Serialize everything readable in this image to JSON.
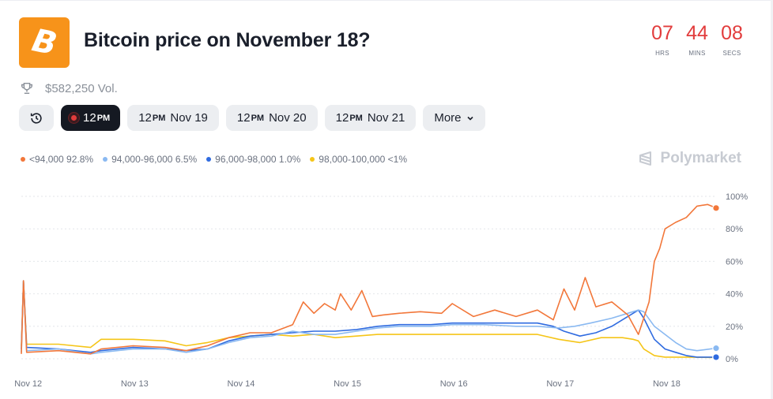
{
  "header": {
    "title": "Bitcoin price on November 18?",
    "logo_glyph": "B",
    "volume": "$582,250 Vol."
  },
  "countdown": [
    {
      "value": "07",
      "label": "HRS"
    },
    {
      "value": "44",
      "label": "MINS"
    },
    {
      "value": "08",
      "label": "SECS"
    }
  ],
  "tabs": {
    "active": {
      "hour": "12",
      "suffix": "PM"
    },
    "items": [
      {
        "hour": "12",
        "suffix": "PM",
        "day": "Nov 19"
      },
      {
        "hour": "12",
        "suffix": "PM",
        "day": "Nov 20"
      },
      {
        "hour": "12",
        "suffix": "PM",
        "day": "Nov 21"
      }
    ],
    "more_label": "More"
  },
  "legend": [
    {
      "label": "<94,000 92.8%",
      "color": "#f2773a"
    },
    {
      "label": "94,000-96,000 6.5%",
      "color": "#8ab9f1"
    },
    {
      "label": "96,000-98,000 1.0%",
      "color": "#2f6be0"
    },
    {
      "label": "98,000-100,000 <1%",
      "color": "#f5c518"
    }
  ],
  "brand": "Polymarket",
  "colors": {
    "accent_red": "#e23c3c",
    "logo_orange": "#f7931a"
  },
  "chart_data": {
    "type": "line",
    "x_ticks": [
      "Nov 12",
      "Nov 13",
      "Nov 14",
      "Nov 15",
      "Nov 16",
      "Nov 17",
      "Nov 18"
    ],
    "y_ticks": [
      "100%",
      "80%",
      "60%",
      "40%",
      "20%",
      "0%"
    ],
    "ylim": [
      0,
      100
    ],
    "xlim": [
      11.95,
      18.48
    ],
    "grid": true,
    "series": [
      {
        "name": "<94,000",
        "color": "#f2773a",
        "x": [
          11.95,
          11.97,
          12.0,
          12.3,
          12.6,
          12.7,
          13.0,
          13.3,
          13.5,
          13.7,
          13.9,
          14.1,
          14.3,
          14.5,
          14.6,
          14.7,
          14.8,
          14.9,
          14.95,
          15.05,
          15.15,
          15.25,
          15.35,
          15.5,
          15.7,
          15.9,
          16.0,
          16.2,
          16.4,
          16.6,
          16.8,
          16.95,
          17.05,
          17.15,
          17.25,
          17.35,
          17.5,
          17.65,
          17.75,
          17.85,
          17.9,
          17.95,
          18.0,
          18.1,
          18.2,
          18.3,
          18.4,
          18.48
        ],
        "y": [
          3,
          48,
          4,
          5,
          3,
          6,
          8,
          7,
          5,
          8,
          13,
          16,
          16,
          21,
          35,
          28,
          34,
          30,
          40,
          30,
          42,
          26,
          27,
          28,
          29,
          28,
          34,
          26,
          30,
          26,
          30,
          24,
          43,
          30,
          50,
          32,
          35,
          27,
          15,
          35,
          60,
          68,
          80,
          84,
          87,
          94,
          95,
          92.8
        ]
      },
      {
        "name": "94,000-96,000",
        "color": "#8ab9f1",
        "x": [
          11.95,
          11.97,
          12.0,
          12.3,
          12.6,
          12.7,
          13.0,
          13.3,
          13.5,
          13.7,
          13.9,
          14.1,
          14.3,
          14.5,
          14.7,
          14.9,
          15.1,
          15.3,
          15.5,
          15.8,
          16.0,
          16.3,
          16.6,
          16.8,
          17.0,
          17.15,
          17.3,
          17.5,
          17.65,
          17.75,
          17.8,
          17.9,
          18.0,
          18.1,
          18.2,
          18.3,
          18.48
        ],
        "y": [
          4,
          48,
          5,
          6,
          3,
          4,
          6,
          6,
          4,
          6,
          10,
          13,
          14,
          17,
          15,
          15,
          17,
          19,
          20,
          20,
          21,
          21,
          20,
          20,
          19,
          20,
          22,
          25,
          28,
          30,
          29,
          20,
          15,
          10,
          6,
          5,
          6.5
        ]
      },
      {
        "name": "96,000-98,000",
        "color": "#2f6be0",
        "x": [
          11.95,
          11.97,
          12.0,
          12.3,
          12.6,
          12.7,
          13.0,
          13.3,
          13.5,
          13.7,
          13.9,
          14.1,
          14.3,
          14.5,
          14.7,
          14.9,
          15.1,
          15.3,
          15.5,
          15.8,
          16.0,
          16.3,
          16.6,
          16.8,
          16.95,
          17.05,
          17.2,
          17.35,
          17.5,
          17.6,
          17.7,
          17.75,
          17.8,
          17.9,
          18.0,
          18.1,
          18.2,
          18.3,
          18.48
        ],
        "y": [
          6,
          48,
          7,
          6,
          4,
          5,
          7,
          6,
          5,
          6,
          11,
          14,
          15,
          16,
          17,
          17,
          18,
          20,
          21,
          21,
          22,
          22,
          22,
          22,
          20,
          17,
          14,
          16,
          20,
          24,
          28,
          30,
          25,
          12,
          6,
          4,
          2,
          1,
          1.0
        ]
      },
      {
        "name": "98,000-100,000",
        "color": "#f5c518",
        "x": [
          11.95,
          11.97,
          12.0,
          12.3,
          12.6,
          12.7,
          13.0,
          13.3,
          13.5,
          13.7,
          13.9,
          14.1,
          14.3,
          14.5,
          14.7,
          14.9,
          15.1,
          15.3,
          15.5,
          15.8,
          16.0,
          16.3,
          16.6,
          16.8,
          17.0,
          17.2,
          17.4,
          17.6,
          17.7,
          17.75,
          17.8,
          17.9,
          18.0,
          18.2,
          18.48
        ],
        "y": [
          8,
          48,
          9,
          9,
          7,
          12,
          12,
          11,
          8,
          10,
          13,
          14,
          15,
          14,
          15,
          13,
          14,
          15,
          15,
          15,
          15,
          15,
          15,
          15,
          12,
          10,
          13,
          13,
          12,
          11,
          6,
          2,
          1,
          1,
          0.8
        ]
      }
    ]
  }
}
